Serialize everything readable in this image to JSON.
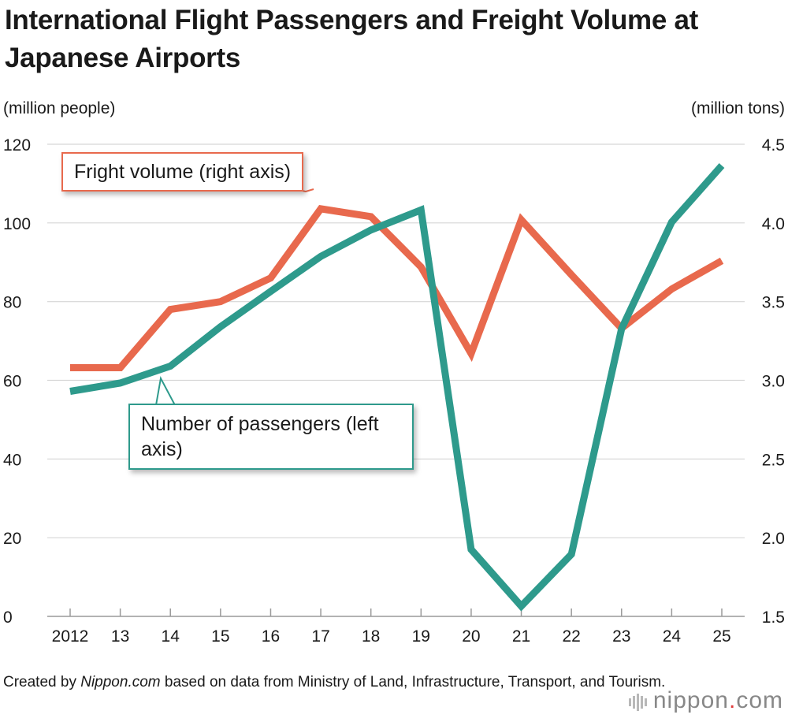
{
  "title": "International Flight Passengers and Freight Volume at Japanese Airports",
  "left_unit": "(million people)",
  "right_unit": "(million tons)",
  "callout_freight": "Fright volume (right axis)",
  "callout_passengers": "Number of passengers (left axis)",
  "footer_prefix": "Created by ",
  "footer_source": "Nippon.com",
  "footer_suffix": " based on data from Ministry of Land, Infrastructure, Transport, and Tourism.",
  "brand_name": "nippon",
  "brand_dot": ".",
  "brand_tld": "com",
  "colors": {
    "passengers": "#2e9a8c",
    "freight": "#e8694d",
    "grid": "#d6d6d6"
  },
  "chart_data": {
    "type": "line",
    "categories": [
      "2012",
      "13",
      "14",
      "15",
      "16",
      "17",
      "18",
      "19",
      "20",
      "21",
      "22",
      "23",
      "24",
      "25"
    ],
    "y_left": {
      "label": "(million people)",
      "ylim": [
        0,
        120
      ],
      "ticks": [
        0,
        20,
        40,
        60,
        80,
        100,
        120
      ]
    },
    "y_right": {
      "label": "(million tons)",
      "ylim": [
        1.5,
        4.5
      ],
      "ticks": [
        "1.5",
        "2.0",
        "2.5",
        "3.0",
        "3.5",
        "4.0",
        "4.5"
      ]
    },
    "grid": true,
    "series": [
      {
        "name": "Number of passengers (left axis)",
        "axis": "left",
        "values": [
          57.2,
          59.3,
          63.6,
          73.6,
          82.6,
          91.5,
          98.2,
          103.3,
          17.0,
          2.6,
          15.8,
          73.1,
          100.2,
          114.6
        ]
      },
      {
        "name": "Fright volume (right axis)",
        "axis": "right",
        "values": [
          3.08,
          3.08,
          3.45,
          3.5,
          3.65,
          4.09,
          4.04,
          3.72,
          3.17,
          4.02,
          3.67,
          3.33,
          3.58,
          3.76
        ]
      }
    ]
  }
}
